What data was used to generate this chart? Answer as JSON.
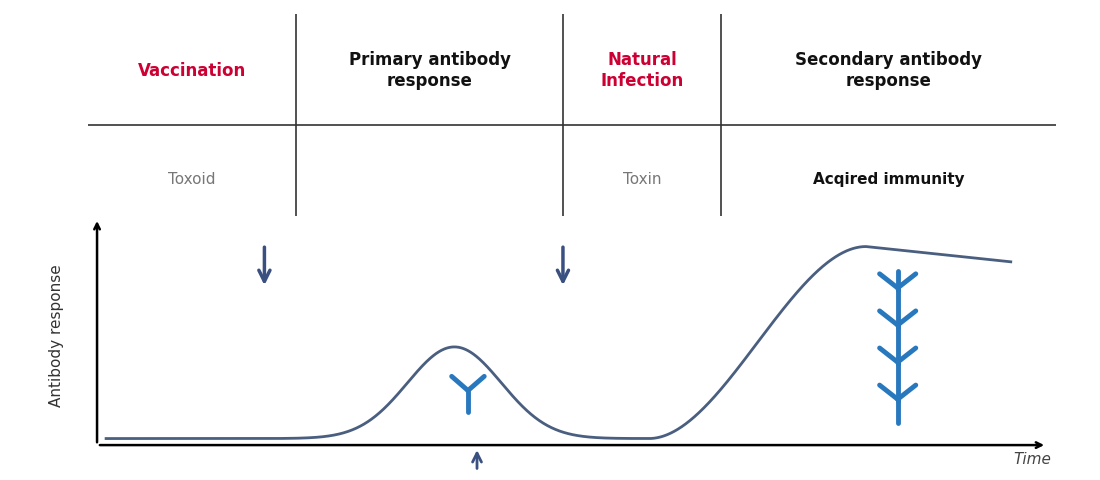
{
  "title": "",
  "ylabel": "Antibody response",
  "xlabel": "Time",
  "background_color": "#ffffff",
  "curve_color": "#4a5f80",
  "curve_linewidth": 2.0,
  "section_line_color": "#333333",
  "section_labels_top": [
    "Vaccination",
    "Primary antibody\nresponse",
    "Natural\nInfection",
    "Secondary antibody\nresponse"
  ],
  "section_labels_top_colors": [
    "#cc0033",
    "#111111",
    "#cc0033",
    "#111111"
  ],
  "section_labels_sub": [
    "Toxoid",
    "",
    "Toxin",
    "Acqired immunity"
  ],
  "section_labels_sub_colors": [
    "#777777",
    "#777777",
    "#777777",
    "#111111"
  ],
  "antibody_color": "#2878be",
  "arrow_color": "#3a5080"
}
